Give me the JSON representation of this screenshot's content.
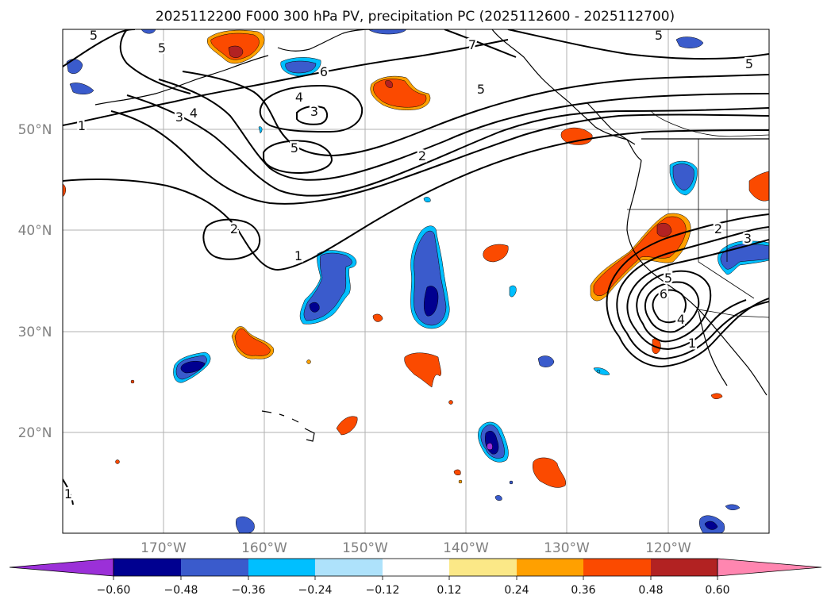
{
  "title": "2025112200 F000 300 hPa PV, precipitation PC (2025112600 - 2025112700)",
  "lat_labels": [
    "50°N",
    "40°N",
    "30°N",
    "20°N"
  ],
  "lon_labels": [
    "170°W",
    "160°W",
    "150°W",
    "140°W",
    "130°W",
    "120°W"
  ],
  "colorbar": {
    "tick_labels": [
      "−0.60",
      "−0.48",
      "−0.36",
      "−0.24",
      "−0.12",
      "0.12",
      "0.24",
      "0.36",
      "0.48",
      "0.60"
    ],
    "colors": [
      "#9b30d8",
      "#000090",
      "#3a5bcc",
      "#00bfff",
      "#aee2fb",
      "#ffffff",
      "#fbe887",
      "#ffa000",
      "#fb4a00",
      "#b22222",
      "#ff86b0"
    ]
  },
  "contour_labels": [
    "5",
    "5",
    "6",
    "7",
    "5",
    "5",
    "5",
    "4",
    "3",
    "3",
    "4",
    "1",
    "5",
    "2",
    "2",
    "1",
    "2",
    "3",
    "5",
    "6",
    "4",
    "1",
    "1"
  ],
  "colors": {
    "land_line": "#000000",
    "grid": "#b0b0b0",
    "neg_deep": "#000090",
    "neg_mid": "#3a5bcc",
    "neg_light": "#00bfff",
    "pos_light": "#ffa000",
    "pos_mid": "#fb4a00",
    "pos_deep": "#b22222",
    "purple": "#9b30d8"
  }
}
